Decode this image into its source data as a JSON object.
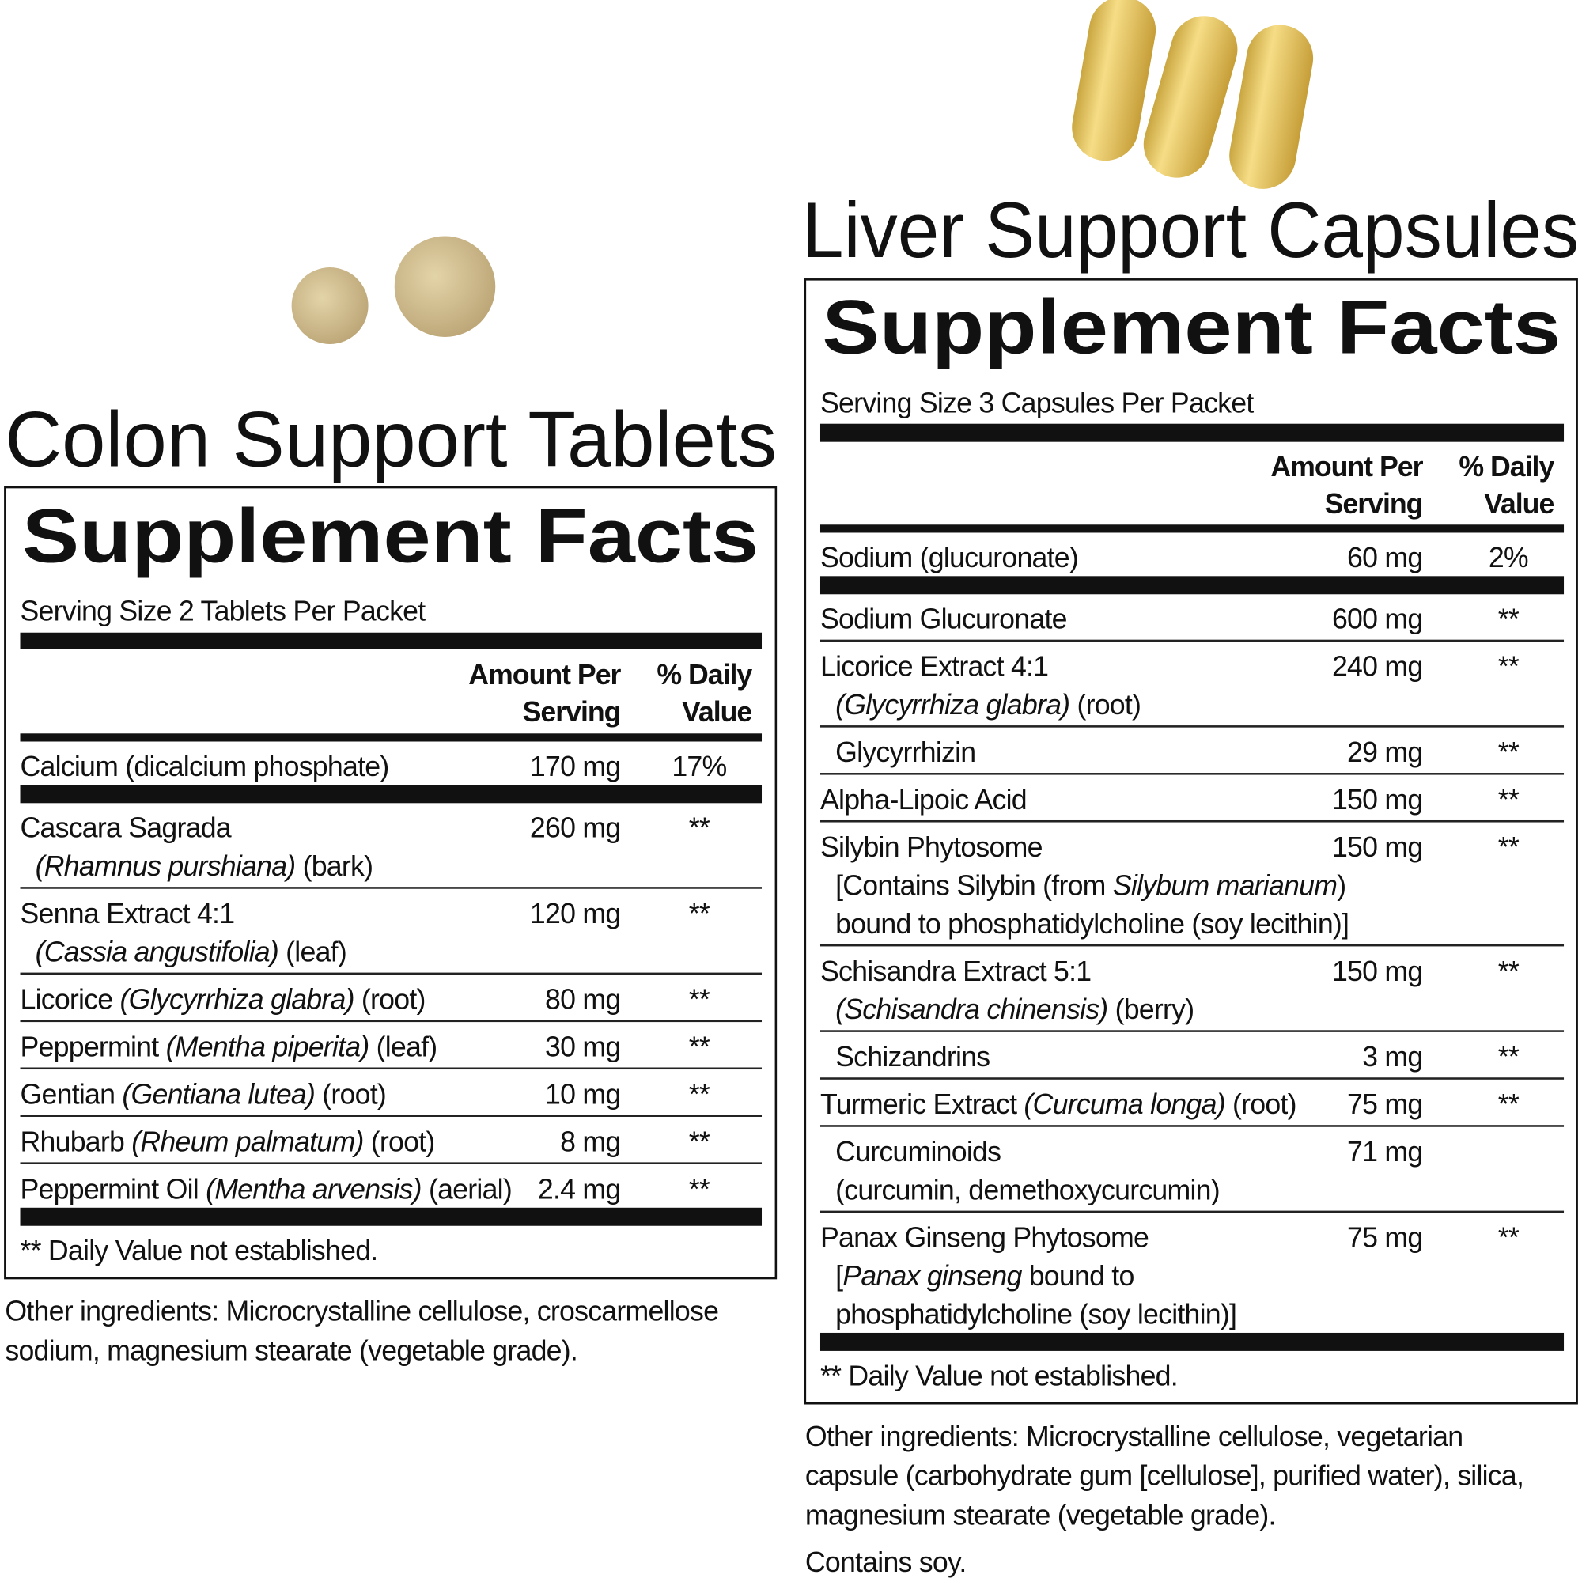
{
  "colon": {
    "title": "Colon Support Tablets",
    "facts_title": "Supplement Facts",
    "serving": "Serving Size 2 Tablets Per Packet",
    "header": {
      "amount": [
        "Amount Per",
        "Serving"
      ],
      "dv": [
        "% Daily",
        "Value"
      ]
    },
    "rows": [
      {
        "name": [
          {
            "parts": [
              {
                "text": "Calcium (dicalcium phosphate)"
              }
            ]
          }
        ],
        "amount": "170 mg",
        "dv": "17%"
      },
      {
        "name": [
          {
            "parts": [
              {
                "text": "Cascara Sagrada"
              }
            ]
          },
          {
            "parts": [
              {
                "text": "(Rhamnus purshiana)",
                "italic": true
              },
              {
                "text": " (bark)"
              }
            ]
          }
        ],
        "amount": "260 mg",
        "dv": "**"
      },
      {
        "name": [
          {
            "parts": [
              {
                "text": "Senna Extract 4:1"
              }
            ]
          },
          {
            "parts": [
              {
                "text": "(Cassia angustifolia)",
                "italic": true
              },
              {
                "text": " (leaf)"
              }
            ]
          }
        ],
        "amount": "120 mg",
        "dv": "**"
      },
      {
        "name": [
          {
            "parts": [
              {
                "text": "Licorice "
              },
              {
                "text": "(Glycyrrhiza glabra)",
                "italic": true
              },
              {
                "text": " (root)"
              }
            ]
          }
        ],
        "amount": "80 mg",
        "dv": "**"
      },
      {
        "name": [
          {
            "parts": [
              {
                "text": "Peppermint "
              },
              {
                "text": "(Mentha piperita)",
                "italic": true
              },
              {
                "text": " (leaf)"
              }
            ]
          }
        ],
        "amount": "30 mg",
        "dv": "**"
      },
      {
        "name": [
          {
            "parts": [
              {
                "text": "Gentian "
              },
              {
                "text": "(Gentiana lutea)",
                "italic": true
              },
              {
                "text": " (root)"
              }
            ]
          }
        ],
        "amount": "10 mg",
        "dv": "**"
      },
      {
        "name": [
          {
            "parts": [
              {
                "text": "Rhubarb "
              },
              {
                "text": "(Rheum palmatum)",
                "italic": true
              },
              {
                "text": " (root)"
              }
            ]
          }
        ],
        "amount": "8 mg",
        "dv": "**"
      },
      {
        "name": [
          {
            "parts": [
              {
                "text": "Peppermint Oil "
              },
              {
                "text": "(Mentha arvensis)",
                "italic": true
              },
              {
                "text": " (aerial)"
              }
            ]
          }
        ],
        "amount": "2.4 mg",
        "dv": "**"
      }
    ],
    "footnote": "** Daily Value not established.",
    "other": [
      "Other ingredients: Microcrystalline cellulose, croscarmellose",
      "sodium, magnesium stearate (vegetable grade)."
    ]
  },
  "liver": {
    "title": "Liver Support Capsules",
    "facts_title": "Supplement Facts",
    "serving": "Serving Size 3 Capsules Per Packet",
    "header": {
      "amount": [
        "Amount Per",
        "Serving"
      ],
      "dv": [
        "% Daily",
        "Value"
      ]
    },
    "rows": [
      {
        "name": [
          {
            "parts": [
              {
                "text": "Sodium (glucuronate)"
              }
            ]
          }
        ],
        "amount": "60 mg",
        "dv": "2%"
      },
      {
        "name": [
          {
            "parts": [
              {
                "text": "Sodium Glucuronate"
              }
            ]
          }
        ],
        "amount": "600 mg",
        "dv": "**"
      },
      {
        "name": [
          {
            "parts": [
              {
                "text": "Licorice Extract 4:1"
              }
            ]
          },
          {
            "parts": [
              {
                "text": "(Glycyrrhiza glabra)",
                "italic": true
              },
              {
                "text": " (root)"
              }
            ]
          }
        ],
        "amount": "240 mg",
        "dv": "**"
      },
      {
        "sub": true,
        "name": [
          {
            "parts": [
              {
                "text": "Glycyrrhizin"
              }
            ]
          }
        ],
        "amount": "29 mg",
        "dv": "**"
      },
      {
        "name": [
          {
            "parts": [
              {
                "text": "Alpha-Lipoic Acid"
              }
            ]
          }
        ],
        "amount": "150 mg",
        "dv": "**"
      },
      {
        "name": [
          {
            "parts": [
              {
                "text": "Silybin Phytosome"
              }
            ]
          },
          {
            "parts": [
              {
                "text": "[Contains Silybin (from "
              },
              {
                "text": "Silybum marianum",
                "italic": true
              },
              {
                "text": ")"
              }
            ]
          },
          {
            "parts": [
              {
                "text": "bound to phosphatidylcholine (soy lecithin)]"
              }
            ]
          }
        ],
        "amount": "150 mg",
        "dv": "**"
      },
      {
        "name": [
          {
            "parts": [
              {
                "text": "Schisandra Extract 5:1"
              }
            ]
          },
          {
            "parts": [
              {
                "text": "(Schisandra chinensis)",
                "italic": true
              },
              {
                "text": " (berry)"
              }
            ]
          }
        ],
        "amount": "150 mg",
        "dv": "**"
      },
      {
        "sub": true,
        "name": [
          {
            "parts": [
              {
                "text": "Schizandrins"
              }
            ]
          }
        ],
        "amount": "3 mg",
        "dv": "**"
      },
      {
        "name": [
          {
            "parts": [
              {
                "text": "Turmeric Extract "
              },
              {
                "text": "(Curcuma longa)",
                "italic": true
              },
              {
                "text": " (root)"
              }
            ]
          }
        ],
        "amount": "75 mg",
        "dv": "**"
      },
      {
        "sub": true,
        "name": [
          {
            "parts": [
              {
                "text": "Curcuminoids"
              }
            ]
          },
          {
            "parts": [
              {
                "text": "(curcumin, demethoxycurcumin)"
              }
            ]
          }
        ],
        "amount": "71 mg"
      },
      {
        "name": [
          {
            "parts": [
              {
                "text": "Panax Ginseng Phytosome"
              }
            ]
          },
          {
            "parts": [
              {
                "text": "["
              },
              {
                "text": "Panax ginseng",
                "italic": true
              },
              {
                "text": " bound to"
              }
            ]
          },
          {
            "parts": [
              {
                "text": "phosphatidylcholine (soy lecithin)]"
              }
            ]
          }
        ],
        "amount": "75 mg",
        "dv": "**"
      }
    ],
    "footnote": "** Daily Value not established.",
    "other": [
      "Other ingredients: Microcrystalline cellulose, vegetarian",
      "capsule (carbohydrate gum [cellulose], purified water), silica,",
      "magnesium stearate (vegetable grade)."
    ],
    "note": "Contains soy."
  }
}
